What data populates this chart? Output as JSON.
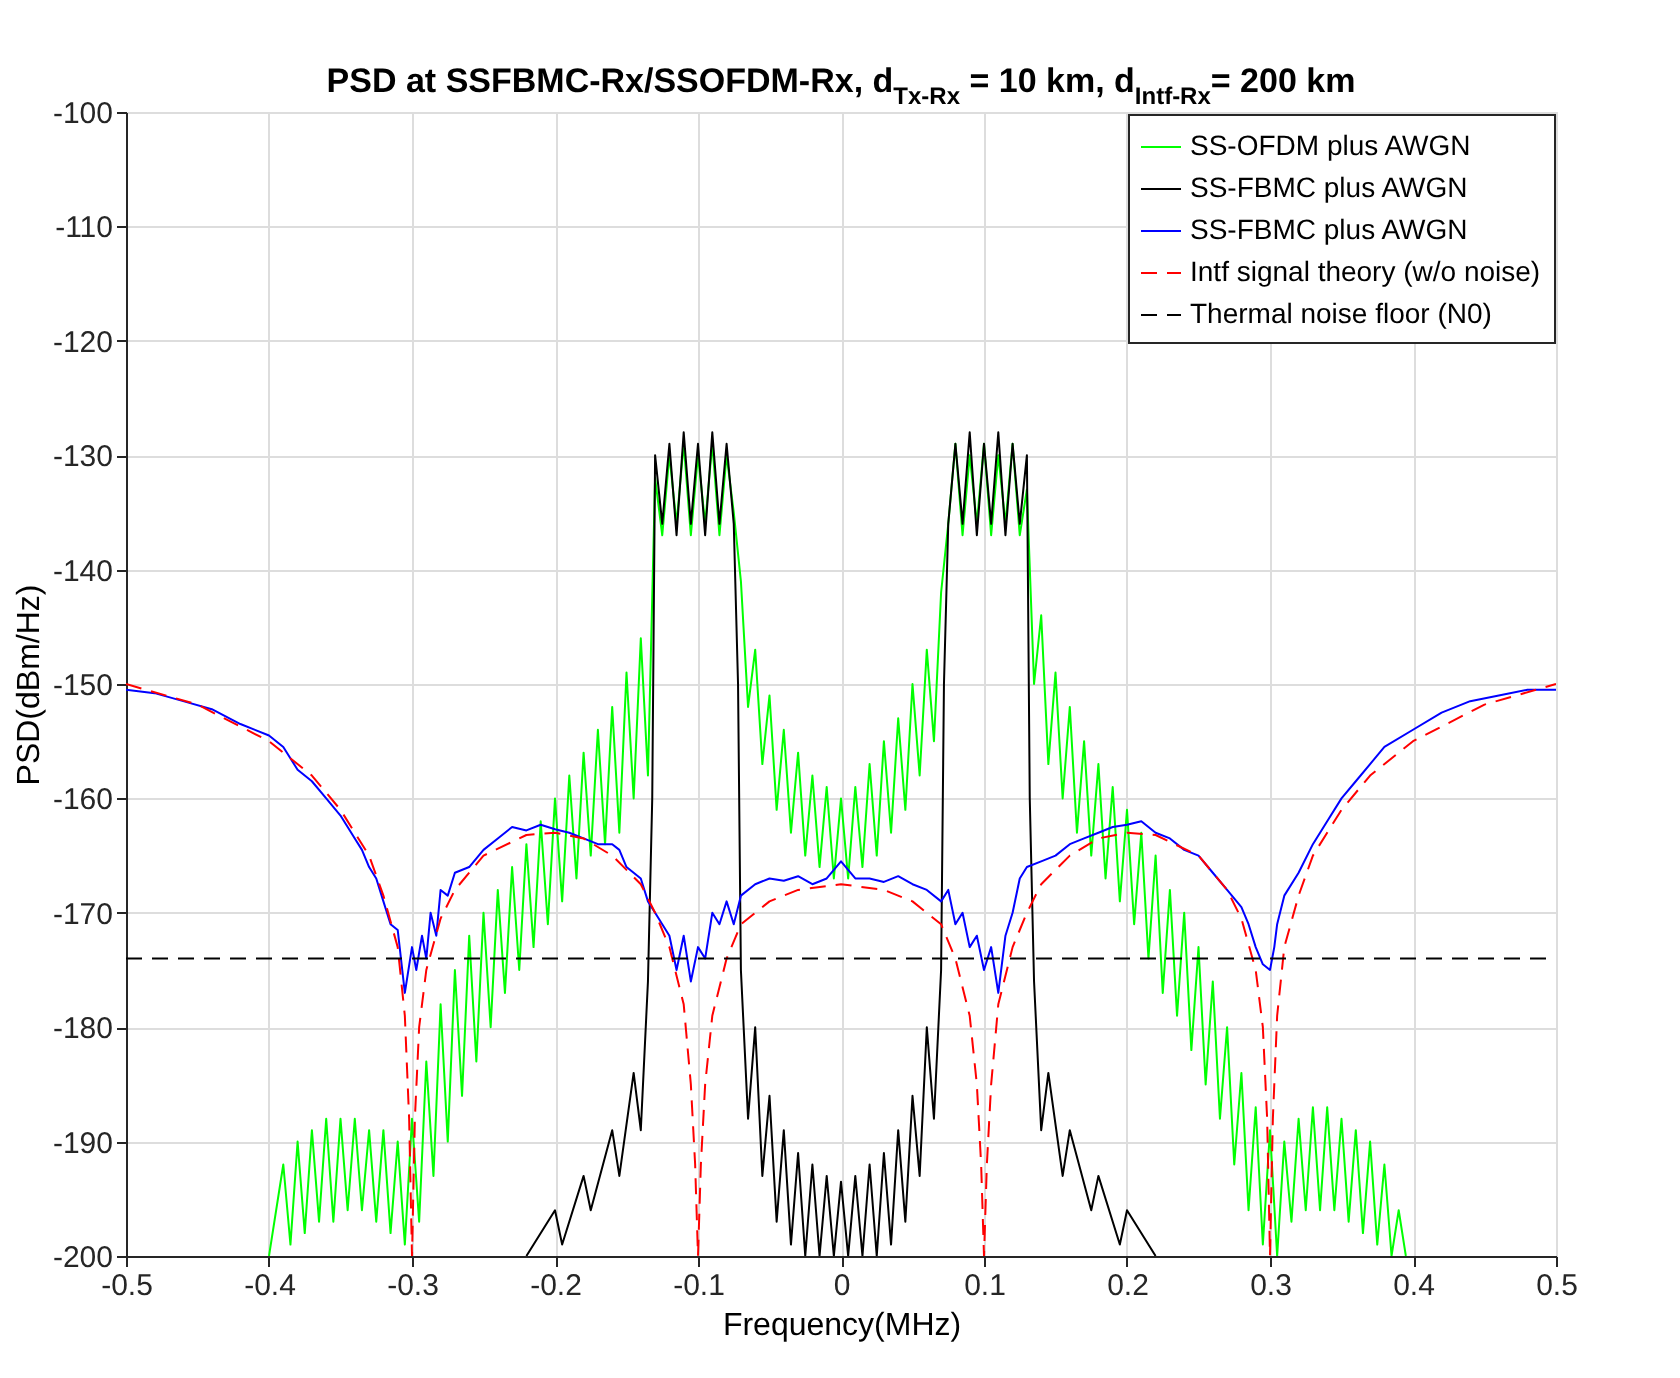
{
  "chart_data": {
    "type": "line",
    "title": "PSD at SSFBMC-Rx/SSOFDM-Rx, d$_{Tx-Rx}$ = 10 km, d$_{Intf-Rx}$= 200 km",
    "xlabel": "Frequency(MHz)",
    "ylabel": "PSD(dBm/Hz)",
    "xlim": [
      -0.5,
      0.5
    ],
    "xticks": [
      -0.5,
      -0.4,
      -0.3,
      -0.2,
      -0.1,
      0,
      0.1,
      0.2,
      0.3,
      0.4,
      0.5
    ],
    "ylim": [
      -200,
      -100
    ],
    "yticks": [
      -200,
      -190,
      -180,
      -170,
      -160,
      -150,
      -140,
      -130,
      -120,
      -110,
      -100
    ],
    "grid": true,
    "legend": "top right",
    "series": [
      {
        "name": "SS-OFDM plus AWGN",
        "color": "#00ff00",
        "line_style": "solid",
        "x": [
          -0.4,
          -0.39,
          -0.385,
          -0.38,
          -0.375,
          -0.37,
          -0.365,
          -0.36,
          -0.355,
          -0.35,
          -0.345,
          -0.34,
          -0.335,
          -0.33,
          -0.325,
          -0.32,
          -0.315,
          -0.31,
          -0.305,
          -0.3,
          -0.295,
          -0.29,
          -0.285,
          -0.28,
          -0.275,
          -0.27,
          -0.265,
          -0.26,
          -0.255,
          -0.25,
          -0.245,
          -0.24,
          -0.235,
          -0.23,
          -0.225,
          -0.22,
          -0.215,
          -0.21,
          -0.205,
          -0.2,
          -0.195,
          -0.19,
          -0.185,
          -0.18,
          -0.175,
          -0.17,
          -0.165,
          -0.16,
          -0.155,
          -0.15,
          -0.145,
          -0.14,
          -0.135,
          -0.13,
          -0.125,
          -0.12,
          -0.115,
          -0.11,
          -0.105,
          -0.1,
          -0.095,
          -0.09,
          -0.085,
          -0.08,
          -0.075,
          -0.07,
          -0.065,
          -0.06,
          -0.055,
          -0.05,
          -0.045,
          -0.04,
          -0.035,
          -0.03,
          -0.025,
          -0.02,
          -0.015,
          -0.01,
          -0.005,
          0,
          0.005,
          0.01,
          0.015,
          0.02,
          0.025,
          0.03,
          0.035,
          0.04,
          0.045,
          0.05,
          0.055,
          0.06,
          0.065,
          0.07,
          0.075,
          0.08,
          0.085,
          0.09,
          0.095,
          0.1,
          0.105,
          0.11,
          0.115,
          0.12,
          0.125,
          0.13,
          0.135,
          0.14,
          0.145,
          0.15,
          0.155,
          0.16,
          0.165,
          0.17,
          0.175,
          0.18,
          0.185,
          0.19,
          0.195,
          0.2,
          0.205,
          0.21,
          0.215,
          0.22,
          0.225,
          0.23,
          0.235,
          0.24,
          0.245,
          0.25,
          0.255,
          0.26,
          0.265,
          0.27,
          0.275,
          0.28,
          0.285,
          0.29,
          0.295,
          0.3,
          0.305,
          0.31,
          0.315,
          0.32,
          0.325,
          0.33,
          0.335,
          0.34,
          0.345,
          0.35,
          0.355,
          0.36,
          0.365,
          0.37,
          0.375,
          0.38,
          0.385,
          0.39,
          0.395
        ],
        "values": [
          -200,
          -192,
          -199,
          -190,
          -198,
          -189,
          -197,
          -188,
          -197,
          -188,
          -196,
          -188,
          -196,
          -189,
          -197,
          -189,
          -198,
          -190,
          -199,
          -188,
          -197,
          -183,
          -193,
          -178,
          -190,
          -175,
          -186,
          -172,
          -183,
          -170,
          -180,
          -168,
          -177,
          -166,
          -175,
          -164,
          -173,
          -162,
          -171,
          -160,
          -169,
          -158,
          -167,
          -156,
          -165,
          -154,
          -164,
          -152,
          -163,
          -149,
          -160,
          -146,
          -158,
          -132,
          -137,
          -130,
          -136,
          -129,
          -137,
          -130,
          -136,
          -129,
          -137,
          -130,
          -135,
          -141,
          -152,
          -147,
          -157,
          -151,
          -161,
          -154,
          -163,
          -156,
          -165,
          -158,
          -166,
          -159,
          -167,
          -160,
          -167,
          -159,
          -166,
          -157,
          -165,
          -155,
          -163,
          -153,
          -161,
          -150,
          -158,
          -147,
          -155,
          -142,
          -136,
          -129,
          -137,
          -130,
          -136,
          -129,
          -137,
          -130,
          -136,
          -129,
          -137,
          -133,
          -150,
          -144,
          -157,
          -149,
          -160,
          -152,
          -163,
          -155,
          -165,
          -157,
          -167,
          -159,
          -169,
          -161,
          -171,
          -163,
          -174,
          -165,
          -177,
          -168,
          -179,
          -170,
          -182,
          -173,
          -185,
          -176,
          -188,
          -180,
          -192,
          -184,
          -196,
          -187,
          -199,
          -189,
          -200,
          -190,
          -197,
          -188,
          -196,
          -187,
          -196,
          -187,
          -196,
          -188,
          -197,
          -189,
          -198,
          -190,
          -199,
          -192,
          -200,
          -196,
          -200
        ]
      },
      {
        "name": "SS-FBMC plus AWGN",
        "color": "#000000",
        "line_style": "solid",
        "x": [
          -0.22,
          -0.2,
          -0.195,
          -0.18,
          -0.175,
          -0.16,
          -0.155,
          -0.145,
          -0.14,
          -0.135,
          -0.132,
          -0.13,
          -0.125,
          -0.12,
          -0.115,
          -0.11,
          -0.105,
          -0.1,
          -0.095,
          -0.09,
          -0.085,
          -0.08,
          -0.075,
          -0.072,
          -0.07,
          -0.065,
          -0.06,
          -0.055,
          -0.05,
          -0.045,
          -0.04,
          -0.035,
          -0.03,
          -0.025,
          -0.02,
          -0.015,
          -0.01,
          -0.005,
          0,
          0.005,
          0.01,
          0.015,
          0.02,
          0.025,
          0.03,
          0.035,
          0.04,
          0.045,
          0.05,
          0.055,
          0.06,
          0.065,
          0.07,
          0.072,
          0.075,
          0.08,
          0.085,
          0.09,
          0.095,
          0.1,
          0.105,
          0.11,
          0.115,
          0.12,
          0.125,
          0.13,
          0.132,
          0.135,
          0.14,
          0.145,
          0.155,
          0.16,
          0.175,
          0.18,
          0.195,
          0.2,
          0.22
        ],
        "values": [
          -200,
          -196,
          -199,
          -193,
          -196,
          -189,
          -193,
          -184,
          -189,
          -176,
          -160,
          -130,
          -136,
          -129,
          -137,
          -128,
          -136,
          -129,
          -137,
          -128,
          -136,
          -129,
          -136,
          -150,
          -175,
          -188,
          -180,
          -193,
          -186,
          -197,
          -189,
          -199,
          -191,
          -200,
          -192,
          -200,
          -193,
          -200,
          -193.5,
          -200,
          -193,
          -200,
          -192,
          -200,
          -191,
          -199,
          -189,
          -197,
          -186,
          -193,
          -180,
          -188,
          -175,
          -150,
          -136,
          -129,
          -136,
          -128,
          -137,
          -129,
          -136,
          -128,
          -137,
          -129,
          -136,
          -130,
          -160,
          -176,
          -189,
          -184,
          -193,
          -189,
          -196,
          -193,
          -199,
          -196,
          -200
        ]
      },
      {
        "name": "SS-FBMC plus AWGN",
        "color": "#0000ff",
        "line_style": "solid",
        "x": [
          -0.5,
          -0.48,
          -0.46,
          -0.44,
          -0.42,
          -0.4,
          -0.39,
          -0.38,
          -0.37,
          -0.36,
          -0.35,
          -0.34,
          -0.335,
          -0.33,
          -0.325,
          -0.32,
          -0.315,
          -0.31,
          -0.305,
          -0.3,
          -0.297,
          -0.293,
          -0.29,
          -0.287,
          -0.283,
          -0.28,
          -0.275,
          -0.27,
          -0.26,
          -0.25,
          -0.24,
          -0.23,
          -0.22,
          -0.21,
          -0.2,
          -0.19,
          -0.18,
          -0.17,
          -0.16,
          -0.155,
          -0.15,
          -0.145,
          -0.14,
          -0.135,
          -0.13,
          -0.125,
          -0.12,
          -0.115,
          -0.11,
          -0.105,
          -0.1,
          -0.095,
          -0.09,
          -0.085,
          -0.08,
          -0.075,
          -0.07,
          -0.06,
          -0.05,
          -0.04,
          -0.03,
          -0.02,
          -0.01,
          0,
          0.01,
          0.02,
          0.03,
          0.04,
          0.05,
          0.06,
          0.07,
          0.075,
          0.08,
          0.085,
          0.09,
          0.095,
          0.1,
          0.105,
          0.11,
          0.115,
          0.12,
          0.125,
          0.13,
          0.14,
          0.15,
          0.16,
          0.17,
          0.18,
          0.19,
          0.2,
          0.21,
          0.22,
          0.23,
          0.24,
          0.25,
          0.26,
          0.27,
          0.28,
          0.285,
          0.29,
          0.295,
          0.3,
          0.303,
          0.305,
          0.31,
          0.32,
          0.33,
          0.34,
          0.35,
          0.36,
          0.37,
          0.38,
          0.4,
          0.42,
          0.44,
          0.46,
          0.48,
          0.5
        ],
        "values": [
          -150.5,
          -150.8,
          -151.5,
          -152.2,
          -153.5,
          -154.5,
          -155.5,
          -157.5,
          -158.5,
          -160,
          -161.5,
          -163.5,
          -164.5,
          -166,
          -167,
          -169,
          -171,
          -171.5,
          -177,
          -173,
          -175,
          -172,
          -174,
          -170,
          -172,
          -168,
          -168.5,
          -166.5,
          -166,
          -164.5,
          -163.5,
          -162.5,
          -162.8,
          -162.3,
          -162.7,
          -163,
          -163.5,
          -164,
          -164,
          -164.5,
          -166,
          -166.5,
          -167,
          -169,
          -170,
          -171,
          -172,
          -175,
          -172,
          -176,
          -173,
          -174,
          -170,
          -171,
          -169,
          -171,
          -168.5,
          -167.5,
          -167,
          -167.2,
          -166.8,
          -167.5,
          -167,
          -165.5,
          -167,
          -167,
          -167.3,
          -166.8,
          -167.5,
          -168,
          -169,
          -168,
          -171,
          -170,
          -173,
          -172,
          -175,
          -173,
          -177,
          -172,
          -170,
          -167,
          -166,
          -165.5,
          -165,
          -164,
          -163.5,
          -163,
          -162.5,
          -162.3,
          -162,
          -163,
          -163.5,
          -164.5,
          -165,
          -166.5,
          -168,
          -169.5,
          -171,
          -173,
          -174.5,
          -175,
          -173,
          -171,
          -168.5,
          -166.5,
          -164,
          -162,
          -160,
          -158.5,
          -157,
          -155.5,
          -154,
          -152.5,
          -151.5,
          -151,
          -150.5,
          -150.5
        ]
      },
      {
        "name": "Intf signal theory (w/o noise)",
        "color": "#ff0000",
        "line_style": "dashed",
        "x": [
          -0.5,
          -0.45,
          -0.4,
          -0.37,
          -0.35,
          -0.33,
          -0.32,
          -0.31,
          -0.305,
          -0.302,
          -0.3,
          -0.298,
          -0.295,
          -0.29,
          -0.28,
          -0.27,
          -0.25,
          -0.22,
          -0.2,
          -0.18,
          -0.16,
          -0.14,
          -0.13,
          -0.12,
          -0.11,
          -0.105,
          -0.102,
          -0.1,
          -0.098,
          -0.095,
          -0.09,
          -0.08,
          -0.07,
          -0.05,
          -0.03,
          0,
          0.03,
          0.05,
          0.07,
          0.08,
          0.09,
          0.095,
          0.098,
          0.1,
          0.102,
          0.105,
          0.11,
          0.12,
          0.13,
          0.14,
          0.16,
          0.18,
          0.2,
          0.22,
          0.25,
          0.27,
          0.28,
          0.29,
          0.295,
          0.298,
          0.3,
          0.302,
          0.305,
          0.31,
          0.32,
          0.33,
          0.35,
          0.37,
          0.4,
          0.45,
          0.5
        ],
        "values": [
          -150,
          -151.8,
          -155,
          -158,
          -161,
          -165,
          -168.5,
          -173,
          -179,
          -188,
          -200,
          -188,
          -180,
          -175,
          -170.5,
          -168,
          -165,
          -163.2,
          -163,
          -163.5,
          -165,
          -167.5,
          -170,
          -173,
          -178,
          -185,
          -192,
          -200,
          -192,
          -185,
          -179,
          -174,
          -171,
          -169,
          -168,
          -167.5,
          -168,
          -169,
          -171,
          -174,
          -179,
          -185,
          -192,
          -200,
          -192,
          -185,
          -178,
          -173,
          -170,
          -167.5,
          -165,
          -163.5,
          -163,
          -163.2,
          -165,
          -168,
          -170.5,
          -175,
          -180,
          -188,
          -200,
          -188,
          -179,
          -173,
          -168.5,
          -165,
          -161,
          -158,
          -155,
          -151.8,
          -150
        ]
      },
      {
        "name": "Thermal noise floor (N0)",
        "color": "#000000",
        "line_style": "dashed",
        "x": [
          -0.5,
          0.5
        ],
        "values": [
          -174,
          -174
        ]
      }
    ]
  }
}
